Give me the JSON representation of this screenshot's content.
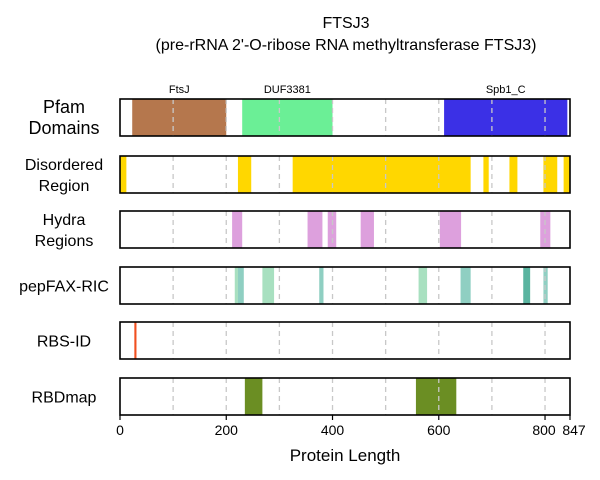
{
  "chart_data": {
    "type": "track",
    "title_line1": "FTSJ3",
    "title_line2": "(pre-rRNA 2'-O-ribose RNA methyltransferase FTSJ3)",
    "xlabel": "Protein Length",
    "xlim": [
      0,
      847
    ],
    "xticks": [
      {
        "value": 0,
        "label": "0"
      },
      {
        "value": 200,
        "label": "200"
      },
      {
        "value": 400,
        "label": "400"
      },
      {
        "value": 600,
        "label": "600"
      },
      {
        "value": 800,
        "label": "800"
      },
      {
        "value": 847,
        "label": "847"
      }
    ],
    "grid_lines": [
      100,
      200,
      300,
      400,
      500,
      600,
      700,
      800
    ],
    "tracks": [
      {
        "name": "Pfam Domains",
        "label_lines": [
          "Pfam",
          "Domains"
        ],
        "segments": [
          {
            "start": 23,
            "end": 200,
            "color": "#b5774d",
            "label": "FtsJ"
          },
          {
            "start": 230,
            "end": 400,
            "color": "#6bef96",
            "label": "DUF3381"
          },
          {
            "start": 610,
            "end": 842,
            "color": "#3b30e6",
            "label": "Spb1_C"
          }
        ]
      },
      {
        "name": "Disordered Region",
        "label_lines": [
          "Disordered",
          "Region"
        ],
        "segments": [
          {
            "start": 0,
            "end": 12,
            "color": "#ffd700"
          },
          {
            "start": 222,
            "end": 247,
            "color": "#ffd700"
          },
          {
            "start": 325,
            "end": 660,
            "color": "#ffd700"
          },
          {
            "start": 684,
            "end": 694,
            "color": "#ffd700"
          },
          {
            "start": 733,
            "end": 748,
            "color": "#ffd700"
          },
          {
            "start": 797,
            "end": 823,
            "color": "#ffd700"
          },
          {
            "start": 835,
            "end": 847,
            "color": "#ffd700"
          }
        ]
      },
      {
        "name": "Hydra Regions",
        "label_lines": [
          "Hydra",
          "Regions"
        ],
        "segments": [
          {
            "start": 211,
            "end": 230,
            "color": "#dda0dd"
          },
          {
            "start": 353,
            "end": 381,
            "color": "#dda0dd"
          },
          {
            "start": 391,
            "end": 407,
            "color": "#dda0dd"
          },
          {
            "start": 453,
            "end": 478,
            "color": "#dda0dd"
          },
          {
            "start": 602,
            "end": 642,
            "color": "#dda0dd"
          },
          {
            "start": 791,
            "end": 810,
            "color": "#dda0dd"
          }
        ]
      },
      {
        "name": "pepFAX-RIC",
        "label_lines": [
          "pepFAX-RIC"
        ],
        "segments": [
          {
            "start": 216,
            "end": 222,
            "color": "#a8e0c0"
          },
          {
            "start": 222,
            "end": 233,
            "color": "#8fcfc2"
          },
          {
            "start": 268,
            "end": 290,
            "color": "#a8e0c0"
          },
          {
            "start": 375,
            "end": 383,
            "color": "#8fcfc2"
          },
          {
            "start": 562,
            "end": 578,
            "color": "#a8e0c0"
          },
          {
            "start": 641,
            "end": 660,
            "color": "#8fcfc2"
          },
          {
            "start": 759,
            "end": 772,
            "color": "#5ab4a0"
          },
          {
            "start": 797,
            "end": 805,
            "color": "#8fcfc2"
          }
        ]
      },
      {
        "name": "RBS-ID",
        "label_lines": [
          "RBS-ID"
        ],
        "segments": [
          {
            "start": 27,
            "end": 31,
            "color": "#f05020"
          }
        ]
      },
      {
        "name": "RBDmap",
        "label_lines": [
          "RBDmap"
        ],
        "segments": [
          {
            "start": 235,
            "end": 268,
            "color": "#6b8e23"
          },
          {
            "start": 557,
            "end": 633,
            "color": "#6b8e23"
          }
        ]
      }
    ]
  }
}
